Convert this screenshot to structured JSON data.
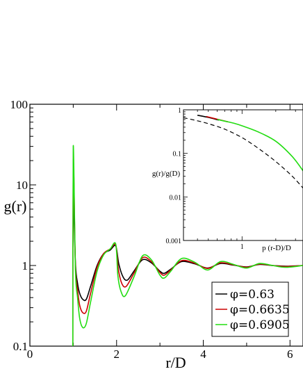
{
  "chart_data": [
    {
      "type": "line",
      "xlabel": "r/D",
      "ylabel": "g(r)",
      "xlim": [
        0,
        6.3
      ],
      "ylim": [
        0.1,
        100
      ],
      "yscale": "log",
      "x_ticks": [
        "0",
        "2",
        "4",
        "6"
      ],
      "y_ticks": [
        "0.1",
        "1",
        "10",
        "100"
      ],
      "legend_position": "bottom-right",
      "series": [
        {
          "name": "φ=0.63",
          "color": "#000000",
          "x": [
            1.0,
            1.05,
            1.1,
            1.15,
            1.22,
            1.3,
            1.4,
            1.55,
            1.7,
            1.85,
            1.98,
            2.05,
            2.15,
            2.25,
            2.4,
            2.6,
            2.8,
            3.0,
            3.1,
            3.25,
            3.5,
            3.8,
            4.1,
            4.4,
            4.7,
            5.0,
            5.3,
            5.6,
            5.9,
            6.3
          ],
          "y": [
            10.0,
            1.1,
            0.6,
            0.45,
            0.38,
            0.38,
            0.55,
            1.0,
            1.4,
            1.55,
            1.75,
            1.05,
            0.72,
            0.66,
            0.85,
            1.18,
            1.08,
            0.85,
            0.8,
            0.9,
            1.12,
            1.05,
            0.93,
            1.06,
            1.01,
            0.96,
            1.03,
            1.0,
            0.98,
            1.0
          ]
        },
        {
          "name": "φ=0.6635",
          "color": "#cc0000",
          "x": [
            0.99,
            1.0,
            1.05,
            1.1,
            1.15,
            1.22,
            1.3,
            1.4,
            1.55,
            1.7,
            1.85,
            1.98,
            2.04,
            2.12,
            2.22,
            2.4,
            2.6,
            2.8,
            3.0,
            3.1,
            3.25,
            3.5,
            3.8,
            4.1,
            4.4,
            4.7,
            5.0,
            5.3,
            5.6,
            5.9,
            6.3
          ],
          "y": [
            0.1,
            20.0,
            1.0,
            0.5,
            0.32,
            0.26,
            0.27,
            0.45,
            0.95,
            1.4,
            1.6,
            1.8,
            0.9,
            0.6,
            0.55,
            0.8,
            1.25,
            1.12,
            0.82,
            0.76,
            0.88,
            1.15,
            1.07,
            0.92,
            1.08,
            1.02,
            0.95,
            1.04,
            1.0,
            0.97,
            1.0
          ]
        },
        {
          "name": "φ=0.6905",
          "color": "#22dd11",
          "x": [
            0.99,
            1.0,
            1.05,
            1.1,
            1.15,
            1.22,
            1.3,
            1.4,
            1.55,
            1.7,
            1.85,
            1.98,
            2.03,
            2.1,
            2.2,
            2.4,
            2.6,
            2.8,
            3.0,
            3.1,
            3.25,
            3.5,
            3.8,
            4.1,
            4.4,
            4.7,
            5.0,
            5.3,
            5.6,
            5.9,
            6.3
          ],
          "y": [
            0.1,
            30.0,
            0.9,
            0.4,
            0.22,
            0.17,
            0.19,
            0.35,
            0.85,
            1.35,
            1.6,
            1.85,
            0.75,
            0.48,
            0.42,
            0.72,
            1.32,
            1.18,
            0.76,
            0.7,
            0.85,
            1.22,
            1.1,
            0.88,
            1.12,
            1.03,
            0.93,
            1.06,
            1.0,
            0.95,
            1.0
          ]
        }
      ]
    },
    {
      "type": "line",
      "xlabel": "p (r-D)/D",
      "ylabel": "g(r)/g(D)",
      "xlim": [
        0.3,
        3.5
      ],
      "ylim": [
        0.001,
        1
      ],
      "xscale": "log",
      "yscale": "log",
      "x_ticks": [
        "1"
      ],
      "y_ticks": [
        "0.001",
        "0.01",
        "0.1",
        "1"
      ],
      "series": [
        {
          "style": "dashed",
          "color": "#000000",
          "x": [
            0.3,
            0.4,
            0.5,
            0.7,
            1.0,
            1.4,
            2.0,
            2.8,
            3.5
          ],
          "y": [
            0.66,
            0.56,
            0.48,
            0.36,
            0.23,
            0.13,
            0.065,
            0.03,
            0.016
          ]
        },
        {
          "color": "#000000",
          "x": [
            0.4,
            0.5,
            0.62
          ],
          "y": [
            0.75,
            0.67,
            0.58
          ]
        },
        {
          "color": "#cc0000",
          "x": [
            0.48,
            0.6,
            0.75
          ],
          "y": [
            0.7,
            0.61,
            0.53
          ]
        },
        {
          "color": "#22dd11",
          "x": [
            0.6,
            0.7,
            0.85,
            1.0,
            1.4,
            2.0,
            2.8,
            3.5
          ],
          "y": [
            0.6,
            0.55,
            0.49,
            0.43,
            0.31,
            0.19,
            0.085,
            0.04
          ]
        }
      ]
    }
  ]
}
